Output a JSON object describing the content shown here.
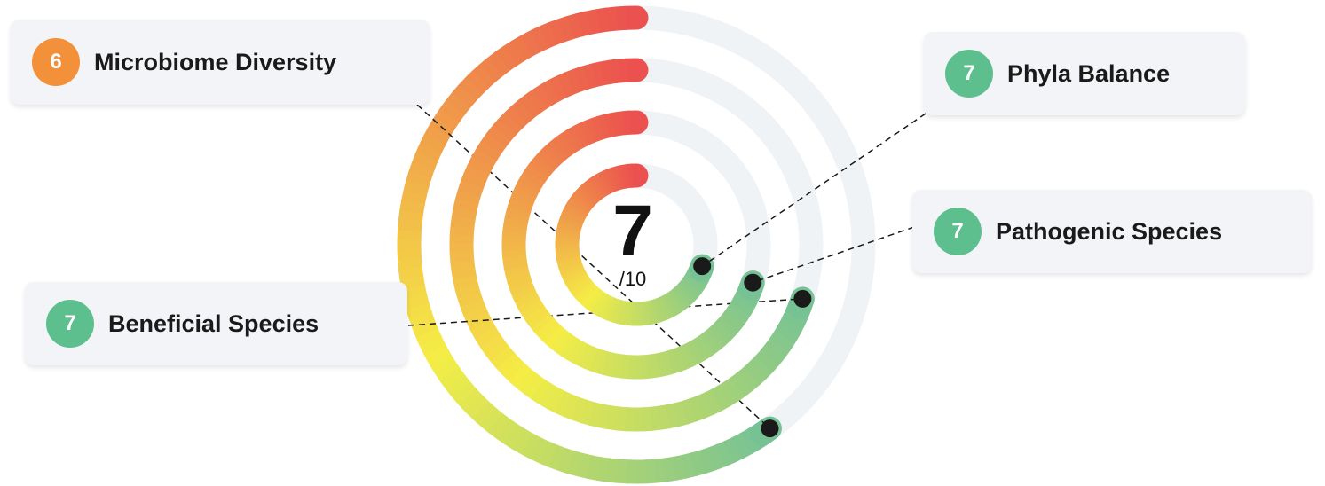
{
  "chart_data": {
    "type": "radial-bar",
    "overall": {
      "score": "7",
      "max_label": "/10"
    },
    "max": 10,
    "series": [
      {
        "name": "Microbiome Diversity",
        "value": 6
      },
      {
        "name": "Beneficial Species",
        "value": 7
      },
      {
        "name": "Pathogenic Species",
        "value": 7
      },
      {
        "name": "Phyla Balance",
        "value": 7
      }
    ]
  },
  "colors": {
    "track": "#eff3f6",
    "good": "#5dbf8e",
    "medium": "#f2913a",
    "bad": "#eb4f4f",
    "gradient_stops": [
      "#eb4f4f",
      "#f5ed45",
      "#74c196"
    ]
  },
  "cards": [
    {
      "label": "Microbiome Diversity",
      "score": "6"
    },
    {
      "label": "Phyla Balance",
      "score": "7"
    },
    {
      "label": "Pathogenic Species",
      "score": "7"
    },
    {
      "label": "Beneficial Species",
      "score": "7"
    }
  ]
}
